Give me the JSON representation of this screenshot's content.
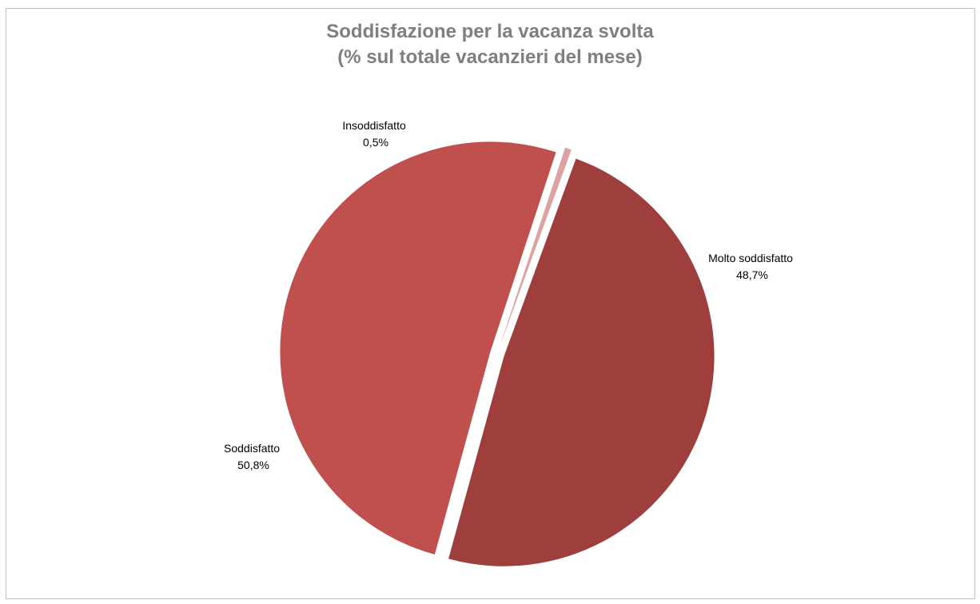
{
  "chart_data": {
    "type": "pie",
    "title_line1": "Soddisfazione per la vacanza svolta",
    "title_line2": "(% sul totale vacanzieri del mese)",
    "slices": [
      {
        "label": "Molto soddisfatto",
        "value": 48.7,
        "value_label": "48,7%",
        "color": "#9e3f3d"
      },
      {
        "label": "Soddisfatto",
        "value": 50.8,
        "value_label": "50,8%",
        "color": "#c0504d"
      },
      {
        "label": "Insoddisfatto",
        "value": 0.5,
        "value_label": "0,5%",
        "color": "#dba3a2"
      }
    ],
    "legend": "none"
  }
}
